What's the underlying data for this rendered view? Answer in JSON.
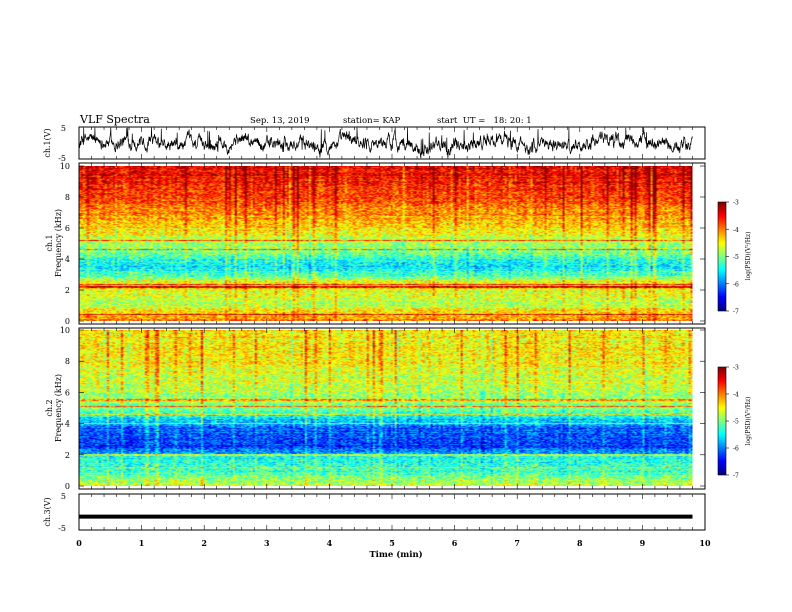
{
  "header": {
    "title": "VLF Spectra",
    "date": "Sep. 13, 2019",
    "station": "station= KAP",
    "start": "start  UT =   18: 20: 1"
  },
  "chart_data": [
    {
      "type": "line",
      "name": "ch1-waveform",
      "ylabel": "ch.1(V)",
      "ylim": [
        -5,
        5
      ],
      "yticks": [
        "5",
        "-5"
      ],
      "xlim": [
        0,
        10
      ],
      "series_extent_min": 9.8,
      "amplitude_v": [
        -3,
        3
      ]
    },
    {
      "type": "heatmap",
      "name": "ch1-spectrogram",
      "ylabel": "ch.1\nFrequency (kHz)",
      "ylim": [
        0,
        10
      ],
      "yticks": [
        "0",
        "2",
        "4",
        "6",
        "8",
        "10"
      ],
      "xlim": [
        0,
        10
      ],
      "data_extent_min": 9.8,
      "colorbar": {
        "label": "log(PSD)(V²/Hz)",
        "ticks": [
          "-3",
          "-4",
          "-5",
          "-6",
          "-7"
        ],
        "range": [
          -7,
          -3
        ]
      },
      "freq_profile_khz": [
        0,
        0.5,
        1.0,
        2.0,
        2.2,
        3.0,
        3.5,
        4.5,
        5.5,
        6.5,
        8.0,
        10
      ],
      "freq_profile_logpsd": [
        -4.0,
        -4.3,
        -4.8,
        -4.5,
        -4.2,
        -5.2,
        -5.6,
        -5.0,
        -4.6,
        -4.2,
        -3.7,
        -3.4
      ],
      "emission_lines_khz": [
        0.4,
        2.2,
        2.35,
        4.6,
        5.2
      ]
    },
    {
      "type": "heatmap",
      "name": "ch2-spectrogram",
      "ylabel": "ch.2\nFrequency (kHz)",
      "ylim": [
        0,
        10
      ],
      "yticks": [
        "0",
        "2",
        "4",
        "6",
        "8",
        "10"
      ],
      "xlim": [
        0,
        10
      ],
      "data_extent_min": 9.8,
      "colorbar": {
        "label": "log(PSD)(V²/Hz)",
        "ticks": [
          "-3",
          "-4",
          "-5",
          "-6",
          "-7"
        ],
        "range": [
          -7,
          -3
        ]
      },
      "freq_profile_khz": [
        0,
        0.5,
        1.0,
        1.8,
        2.2,
        2.6,
        3.2,
        3.8,
        4.3,
        5.0,
        6.0,
        8.0,
        10
      ],
      "freq_profile_logpsd": [
        -4.6,
        -5.0,
        -5.3,
        -5.4,
        -6.0,
        -6.3,
        -6.2,
        -6.1,
        -5.6,
        -5.0,
        -4.8,
        -4.5,
        -4.4
      ],
      "emission_lines_khz": [
        1.2,
        2.0,
        4.0,
        4.6,
        5.1,
        5.5
      ]
    },
    {
      "type": "line",
      "name": "ch3-waveform",
      "ylabel": "ch.3(V)",
      "ylim": [
        -5,
        5
      ],
      "yticks": [
        "5",
        "-5"
      ],
      "xlim": [
        0,
        10
      ],
      "constant_value_v": -1.3,
      "series_extent_min": 9.8
    }
  ],
  "xaxis": {
    "label": "Time (min)",
    "ticks": [
      "0",
      "1",
      "2",
      "3",
      "4",
      "5",
      "6",
      "7",
      "8",
      "9",
      "10"
    ]
  }
}
